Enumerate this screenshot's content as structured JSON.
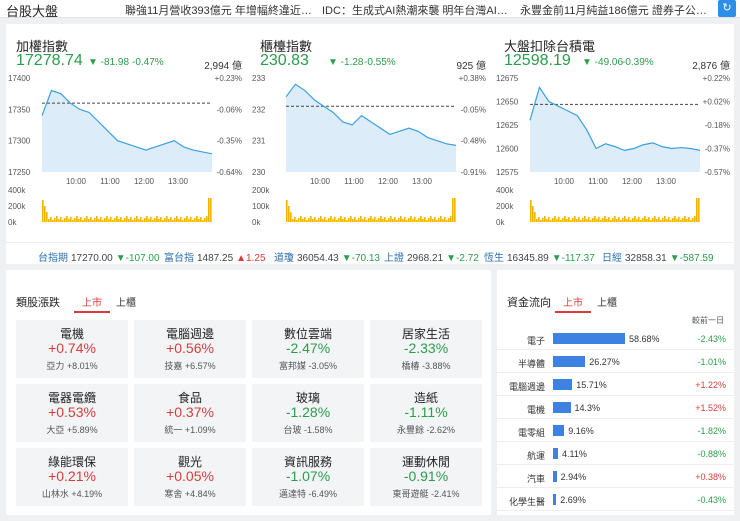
{
  "topbar": {
    "title": "台股大盤",
    "news": [
      "聯強11月營收393億元 年增幅終違近…",
      "IDC：生成式AI熱潮來襲 明年台灣AI…",
      "永豐金前11月純益186億元 證券子公…"
    ],
    "refresh_icon": "refresh-icon"
  },
  "indices": [
    {
      "name": "加權指數",
      "value": "17278.74",
      "change": "▼ -81.98",
      "pct": "-0.47%",
      "volume": "2,994 億",
      "y_ticks": [
        "17400",
        "17350",
        "17300",
        "17250"
      ],
      "pct_ticks": [
        "+0.23%",
        "-0.06%",
        "-0.35%",
        "-0.64%"
      ],
      "vol_ticks": [
        "400k",
        "200k",
        "0k"
      ],
      "x_ticks": [
        "10:00",
        "11:00",
        "12:00",
        "13:00"
      ]
    },
    {
      "name": "櫃檯指數",
      "value": "230.83",
      "change": "▼ -1.28",
      "pct": "-0.55%",
      "volume": "925 億",
      "y_ticks": [
        "233",
        "232",
        "231",
        "230"
      ],
      "pct_ticks": [
        "+0.38%",
        "-0.05%",
        "-0.48%",
        "-0.91%"
      ],
      "vol_ticks": [
        "200k",
        "100k",
        "0k"
      ],
      "x_ticks": [
        "10:00",
        "11:00",
        "12:00",
        "13:00"
      ]
    },
    {
      "name": "大盤扣除台積電",
      "value": "12598.19",
      "change": "▼ -49.06",
      "pct": "-0.39%",
      "volume": "2,876 億",
      "y_ticks": [
        "12675",
        "12650",
        "12625",
        "12600",
        "12575"
      ],
      "pct_ticks": [
        "+0.22%",
        "+0.02%",
        "-0.18%",
        "-0.37%",
        "-0.57%"
      ],
      "vol_ticks": [
        "400k",
        "200k",
        "0k"
      ],
      "x_ticks": [
        "10:00",
        "11:00",
        "12:00",
        "13:00"
      ]
    }
  ],
  "chart_data": [
    {
      "type": "line",
      "title": "加權指數",
      "x": [
        "09:00",
        "09:15",
        "09:30",
        "09:45",
        "10:00",
        "10:15",
        "10:30",
        "10:45",
        "11:00",
        "11:15",
        "11:30",
        "11:45",
        "12:00",
        "12:15",
        "12:30",
        "12:45",
        "13:00",
        "13:15",
        "13:30"
      ],
      "values": [
        17340,
        17380,
        17375,
        17360,
        17350,
        17345,
        17330,
        17315,
        17300,
        17295,
        17290,
        17285,
        17290,
        17295,
        17300,
        17290,
        17285,
        17282,
        17279
      ],
      "ylim": [
        17250,
        17400
      ],
      "reference": 17360
    },
    {
      "type": "line",
      "title": "櫃檯指數",
      "x": [
        "09:00",
        "09:15",
        "09:30",
        "09:45",
        "10:00",
        "10:15",
        "10:30",
        "10:45",
        "11:00",
        "11:15",
        "11:30",
        "11:45",
        "12:00",
        "12:15",
        "12:30",
        "12:45",
        "13:00",
        "13:15",
        "13:30"
      ],
      "values": [
        232.4,
        232.8,
        232.6,
        232.3,
        232.1,
        231.9,
        231.6,
        231.5,
        231.8,
        231.6,
        231.4,
        231.2,
        231.3,
        231.4,
        231.3,
        231.1,
        231.0,
        230.9,
        230.85
      ],
      "ylim": [
        230,
        233
      ],
      "reference": 232.1
    },
    {
      "type": "line",
      "title": "大盤扣除台積電",
      "x": [
        "09:00",
        "09:15",
        "09:30",
        "09:45",
        "10:00",
        "10:15",
        "10:30",
        "10:45",
        "11:00",
        "11:15",
        "11:30",
        "11:45",
        "12:00",
        "12:15",
        "12:30",
        "12:45",
        "13:00",
        "13:15",
        "13:30"
      ],
      "values": [
        12630,
        12665,
        12650,
        12645,
        12640,
        12635,
        12620,
        12600,
        12605,
        12602,
        12598,
        12600,
        12604,
        12606,
        12602,
        12600,
        12601,
        12600,
        12598
      ],
      "ylim": [
        12575,
        12675
      ],
      "reference": 12647
    }
  ],
  "ticker": [
    {
      "name": "台指期",
      "value": "17270.00",
      "change": "▼-107.00",
      "dir": "down"
    },
    {
      "name": "富台指",
      "value": "1487.25",
      "change": "▲1.25",
      "dir": "up"
    },
    {
      "name": "道瓊",
      "value": "36054.43",
      "change": "▼-70.13",
      "dir": "down"
    },
    {
      "name": "上證",
      "value": "2968.21",
      "change": "▼-2.72",
      "dir": "down"
    },
    {
      "name": "恆生",
      "value": "16345.89",
      "change": "▼-117.37",
      "dir": "down"
    },
    {
      "name": "日經",
      "value": "32858.31",
      "change": "▼-587.59",
      "dir": "down"
    }
  ],
  "sectors": {
    "title": "類股漲跌",
    "tabs": [
      "上市",
      "上櫃"
    ],
    "items": [
      {
        "name": "電機",
        "pct": "+0.74%",
        "lead": "亞力 +8.01%",
        "dir": "up"
      },
      {
        "name": "電腦週邊",
        "pct": "+0.56%",
        "lead": "技嘉 +6.57%",
        "dir": "up"
      },
      {
        "name": "數位雲端",
        "pct": "-2.47%",
        "lead": "富邦媒 -3.05%",
        "dir": "down"
      },
      {
        "name": "居家生活",
        "pct": "-2.33%",
        "lead": "橋椿 -3.88%",
        "dir": "down"
      },
      {
        "name": "電器電纜",
        "pct": "+0.53%",
        "lead": "大亞 +5.89%",
        "dir": "up"
      },
      {
        "name": "食品",
        "pct": "+0.37%",
        "lead": "統一 +1.09%",
        "dir": "up"
      },
      {
        "name": "玻璃",
        "pct": "-1.28%",
        "lead": "台玻 -1.58%",
        "dir": "down"
      },
      {
        "name": "造紙",
        "pct": "-1.11%",
        "lead": "永豐餘 -2.62%",
        "dir": "down"
      },
      {
        "name": "綠能環保",
        "pct": "+0.21%",
        "lead": "山林水 +4.19%",
        "dir": "up"
      },
      {
        "name": "觀光",
        "pct": "+0.05%",
        "lead": "寒舍 +4.84%",
        "dir": "up"
      },
      {
        "name": "資訊服務",
        "pct": "-1.07%",
        "lead": "邁達特 -6.49%",
        "dir": "down"
      },
      {
        "name": "運動休閒",
        "pct": "-0.91%",
        "lead": "東哥遊艇 -2.41%",
        "dir": "down"
      }
    ]
  },
  "fund_flow": {
    "title": "資金流向",
    "tabs": [
      "上市",
      "上櫃"
    ],
    "header": "較前一日",
    "items": [
      {
        "name": "電子",
        "share": 58.68,
        "share_label": "58.68%",
        "change": "-2.43%",
        "dir": "down"
      },
      {
        "name": "半導體",
        "share": 26.27,
        "share_label": "26.27%",
        "change": "-1.01%",
        "dir": "down"
      },
      {
        "name": "電腦週邊",
        "share": 15.71,
        "share_label": "15.71%",
        "change": "+1.22%",
        "dir": "up"
      },
      {
        "name": "電機",
        "share": 14.3,
        "share_label": "14.3%",
        "change": "+1.52%",
        "dir": "up"
      },
      {
        "name": "電零組",
        "share": 9.16,
        "share_label": "9.16%",
        "change": "-1.82%",
        "dir": "down"
      },
      {
        "name": "航運",
        "share": 4.11,
        "share_label": "4.11%",
        "change": "-0.88%",
        "dir": "down"
      },
      {
        "name": "汽車",
        "share": 2.94,
        "share_label": "2.94%",
        "change": "+0.38%",
        "dir": "up"
      },
      {
        "name": "化學生醫",
        "share": 2.69,
        "share_label": "2.69%",
        "change": "-0.43%",
        "dir": "down"
      }
    ]
  },
  "colors": {
    "up": "#d93b3b",
    "down": "#2a9d4a",
    "line": "#3aa0e0",
    "accent": "#2e8fe8",
    "volume": "#f0b400"
  }
}
